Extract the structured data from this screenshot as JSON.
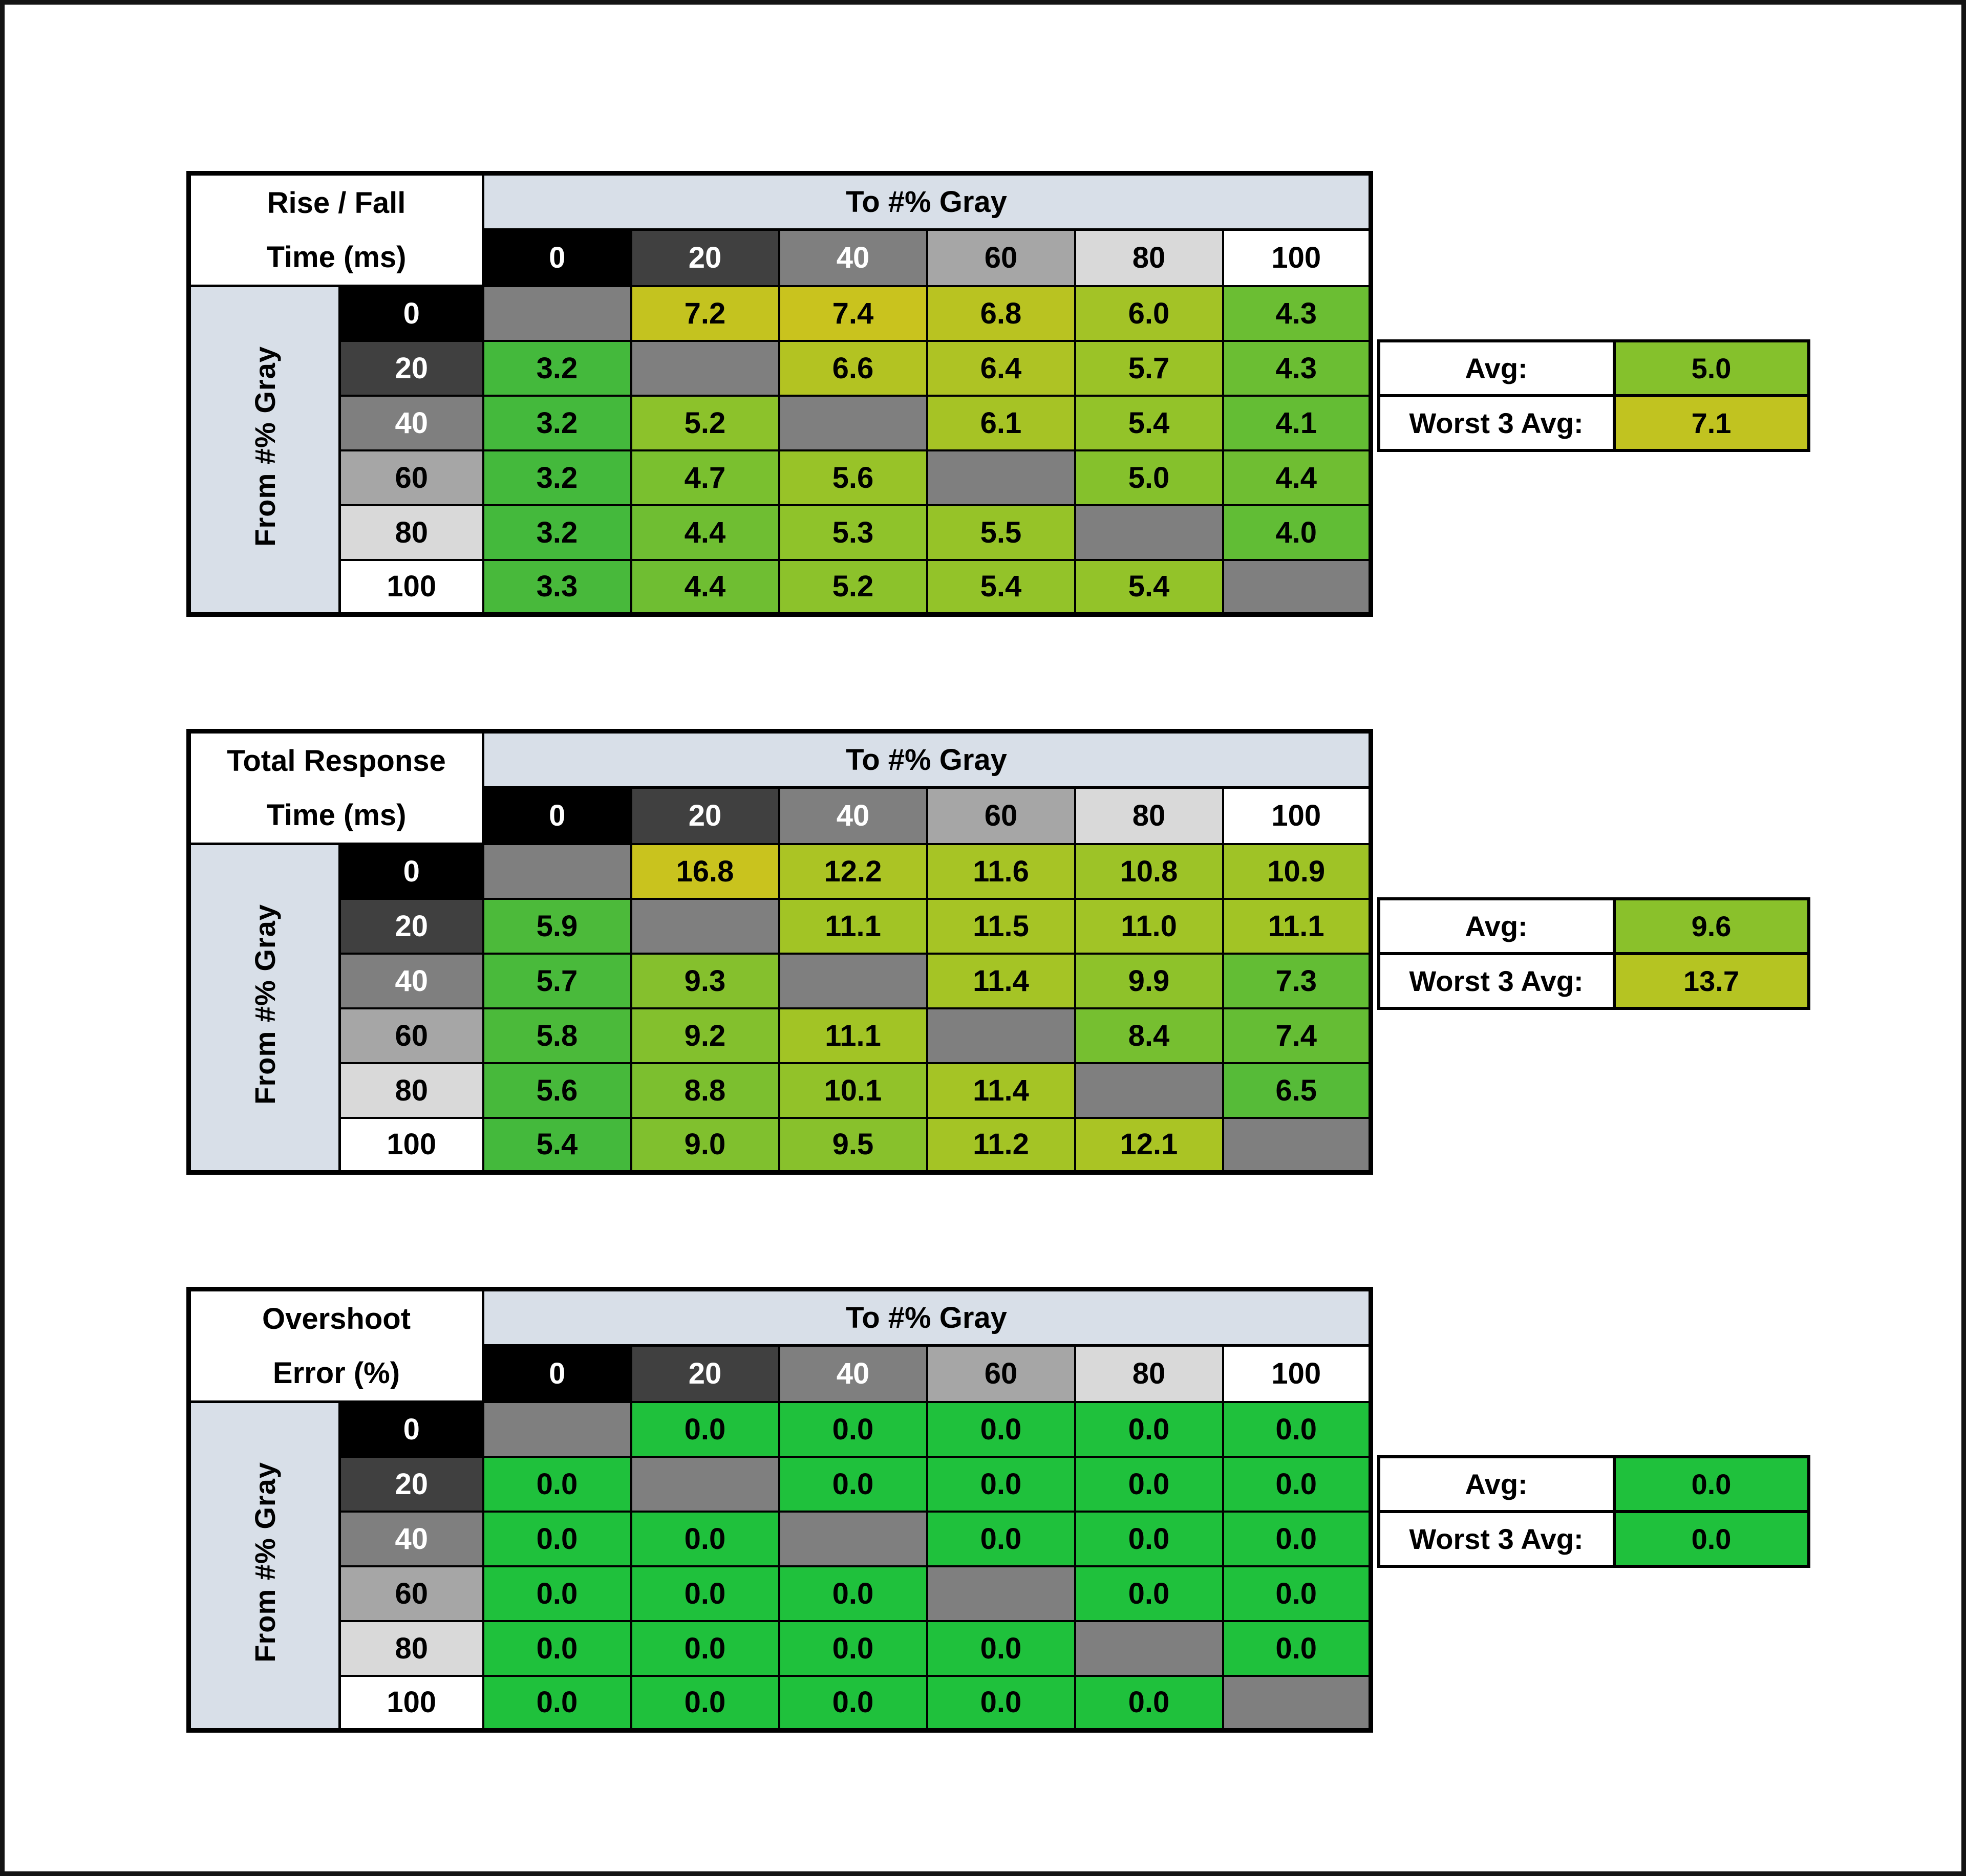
{
  "style": {
    "background": "#ffffff",
    "frame_border": "#141414",
    "band_bg": "#d8dfe8",
    "diagonal_bg": "#7f7f7f",
    "gray_headers": [
      {
        "bg": "#000000",
        "fg": "#ffffff"
      },
      {
        "bg": "#404040",
        "fg": "#ffffff"
      },
      {
        "bg": "#7f7f7f",
        "fg": "#ffffff"
      },
      {
        "bg": "#a6a6a6",
        "fg": "#000000"
      },
      {
        "bg": "#d9d9d9",
        "fg": "#000000"
      },
      {
        "bg": "#ffffff",
        "fg": "#000000"
      }
    ]
  },
  "chart_data": [
    {
      "id": "rise-fall-time-table",
      "type": "heatmap",
      "title_line1": "Rise / Fall",
      "title_line2": "Time (ms)",
      "x_label": "To #% Gray",
      "y_label": "From #% Gray",
      "categories": [
        "0",
        "20",
        "40",
        "60",
        "80",
        "100"
      ],
      "values": [
        [
          null,
          "7.2",
          "7.4",
          "6.8",
          "6.0",
          "4.3"
        ],
        [
          "3.2",
          null,
          "6.6",
          "6.4",
          "5.7",
          "4.3"
        ],
        [
          "3.2",
          "5.2",
          null,
          "6.1",
          "5.4",
          "4.1"
        ],
        [
          "3.2",
          "4.7",
          "5.6",
          null,
          "5.0",
          "4.4"
        ],
        [
          "3.2",
          "4.4",
          "5.3",
          "5.5",
          null,
          "4.0"
        ],
        [
          "3.3",
          "4.4",
          "5.2",
          "5.4",
          "5.4",
          null
        ]
      ],
      "avg_label": "Avg:",
      "avg": "5.0",
      "worst_label": "Worst 3 Avg:",
      "worst": "7.1",
      "color_scale": [
        [
          3.2,
          "#44b93c"
        ],
        [
          5.4,
          "#93c329"
        ],
        [
          7.4,
          "#c9c31e"
        ]
      ]
    },
    {
      "id": "total-response-time-table",
      "type": "heatmap",
      "title_line1": "Total Response",
      "title_line2": "Time (ms)",
      "x_label": "To #% Gray",
      "y_label": "From #% Gray",
      "categories": [
        "0",
        "20",
        "40",
        "60",
        "80",
        "100"
      ],
      "values": [
        [
          null,
          "16.8",
          "12.2",
          "11.6",
          "10.8",
          "10.9"
        ],
        [
          "5.9",
          null,
          "11.1",
          "11.5",
          "11.0",
          "11.1"
        ],
        [
          "5.7",
          "9.3",
          null,
          "11.4",
          "9.9",
          "7.3"
        ],
        [
          "5.8",
          "9.2",
          "11.1",
          null,
          "8.4",
          "7.4"
        ],
        [
          "5.6",
          "8.8",
          "10.1",
          "11.4",
          null,
          "6.5"
        ],
        [
          "5.4",
          "9.0",
          "9.5",
          "11.2",
          "12.1",
          null
        ]
      ],
      "avg_label": "Avg:",
      "avg": "9.6",
      "worst_label": "Worst 3 Avg:",
      "worst": "13.7",
      "color_scale": [
        [
          5.4,
          "#44b93c"
        ],
        [
          11.2,
          "#a4c425"
        ],
        [
          16.8,
          "#c9c31e"
        ]
      ]
    },
    {
      "id": "overshoot-error-table",
      "type": "heatmap",
      "title_line1": "Overshoot",
      "title_line2": "Error (%)",
      "x_label": "To #% Gray",
      "y_label": "From #% Gray",
      "categories": [
        "0",
        "20",
        "40",
        "60",
        "80",
        "100"
      ],
      "values": [
        [
          null,
          "0.0",
          "0.0",
          "0.0",
          "0.0",
          "0.0"
        ],
        [
          "0.0",
          null,
          "0.0",
          "0.0",
          "0.0",
          "0.0"
        ],
        [
          "0.0",
          "0.0",
          null,
          "0.0",
          "0.0",
          "0.0"
        ],
        [
          "0.0",
          "0.0",
          "0.0",
          null,
          "0.0",
          "0.0"
        ],
        [
          "0.0",
          "0.0",
          "0.0",
          "0.0",
          null,
          "0.0"
        ],
        [
          "0.0",
          "0.0",
          "0.0",
          "0.0",
          "0.0",
          null
        ]
      ],
      "avg_label": "Avg:",
      "avg": "0.0",
      "worst_label": "Worst 3 Avg:",
      "worst": "0.0",
      "color_scale": [
        [
          0,
          "#1fc13c"
        ],
        [
          1,
          "#1fc13c"
        ]
      ]
    }
  ]
}
